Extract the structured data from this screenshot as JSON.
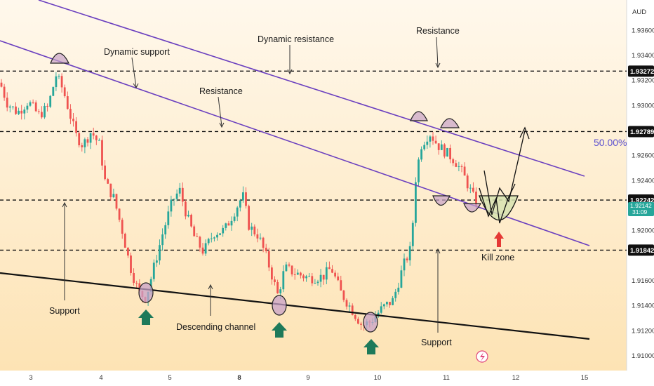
{
  "chart_data": {
    "type": "candlestick",
    "currency": "AUD",
    "ylim": [
      1.9088,
      1.9384
    ],
    "x_ticks": [
      "3",
      "4",
      "5",
      "8",
      "9",
      "10",
      "11",
      "12",
      "15"
    ],
    "y_ticks": [
      "1.93600",
      "1.93400",
      "1.93200",
      "1.93000",
      "1.92600",
      "1.92400",
      "1.92000",
      "1.91600",
      "1.91400",
      "1.91200",
      "1.91000"
    ],
    "levels": [
      "1.93272",
      "1.92789",
      "1.92242",
      "1.91842"
    ],
    "current_price": "1.92142",
    "countdown": "31:09",
    "fib_label": "50.00%",
    "annotations": {
      "dynamic_support": "Dynamic support",
      "dynamic_resistance": "Dynamic resistance",
      "resistance_top": "Resistance",
      "resistance_mid": "Resistance",
      "support_left": "Support",
      "support_right": "Support",
      "descending_channel": "Descending channel",
      "kill_zone": "Kill zone"
    },
    "colors": {
      "bull": "#26a69a",
      "bear": "#ef5350",
      "channel": "#6a3fbf",
      "support_line": "#111111",
      "highlight": "#c8a2c8",
      "kill_zone_fill": "#d7e3b0",
      "up_arrow": "#1e7a5a",
      "down_arrow": "#e53935",
      "fib_text": "#5a4fcf",
      "level_bg": "#111111"
    }
  }
}
